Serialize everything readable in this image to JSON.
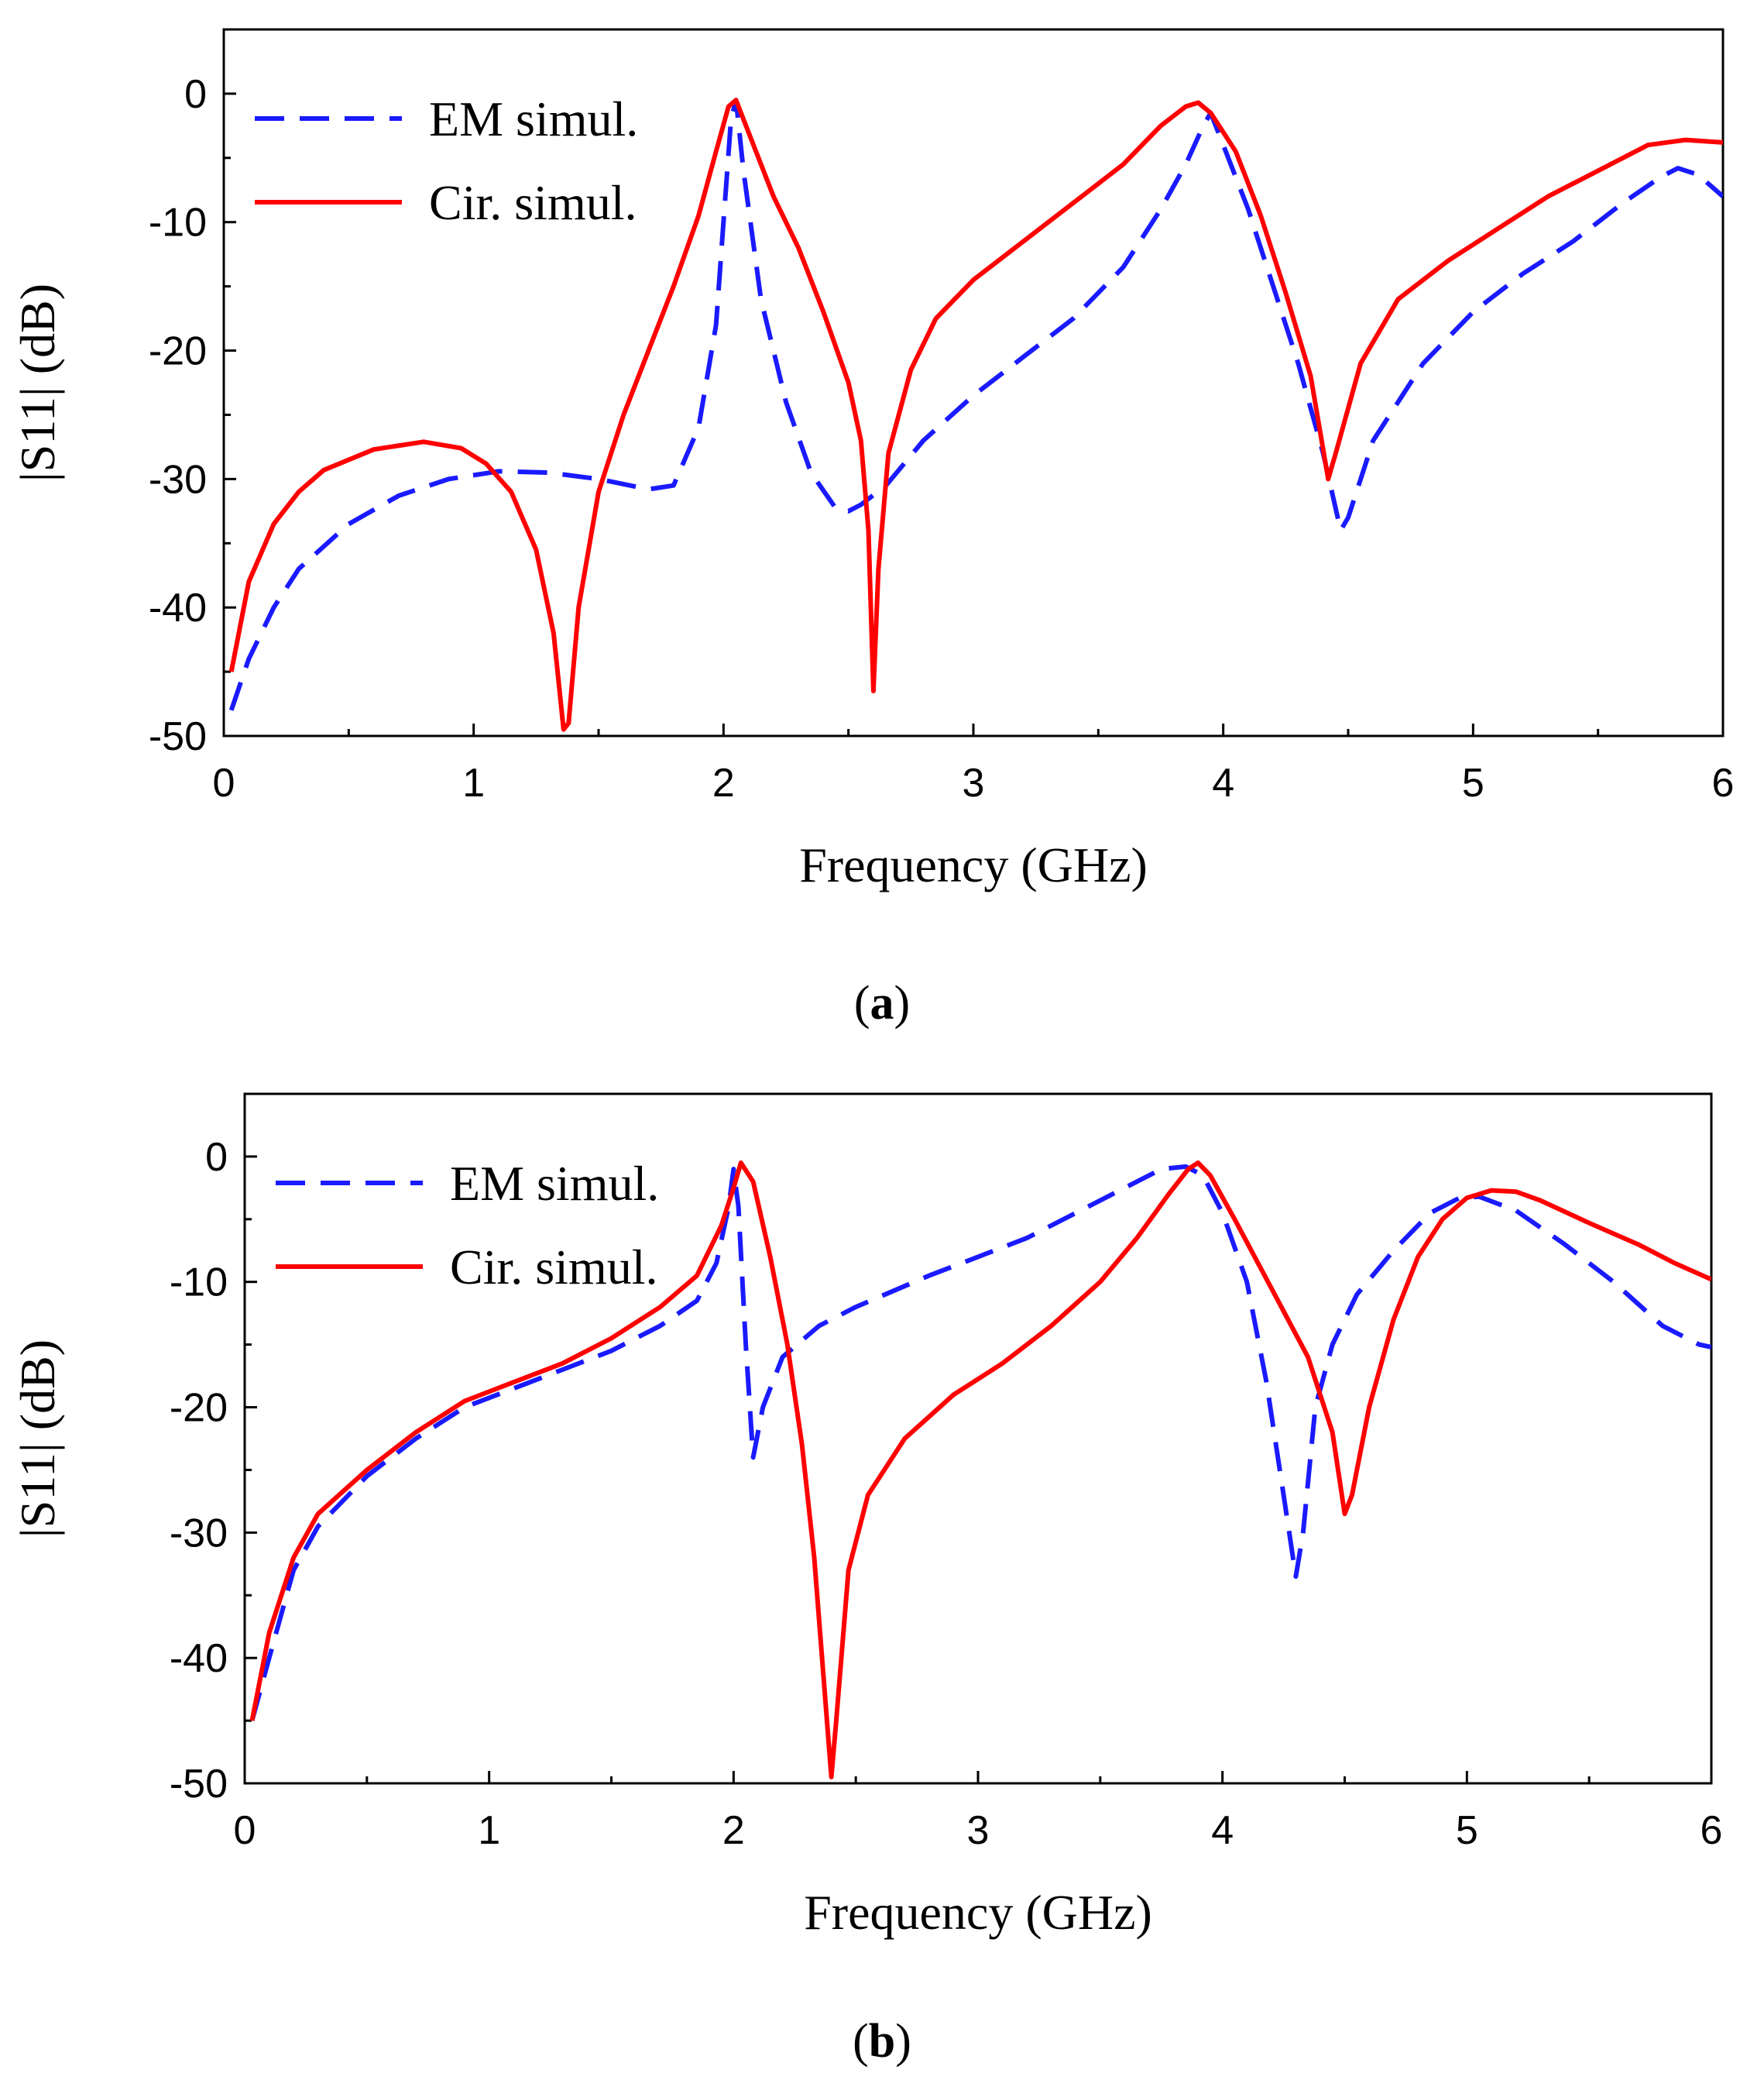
{
  "chart_data": [
    {
      "panel": "(a)",
      "panel_letter": "a",
      "type": "line",
      "xlabel": "Frequency  (GHz)",
      "ylabel": "|S11| (dB)",
      "xlim": [
        0,
        6
      ],
      "ylim": [
        -50,
        5
      ],
      "xticks": [
        "0",
        "1",
        "2",
        "3",
        "4",
        "5",
        "6"
      ],
      "yticks": [
        "0",
        "-10",
        "-20",
        "-30",
        "-40",
        "-50"
      ],
      "legend_position": "top-left",
      "series": [
        {
          "name": "EM simul.",
          "color": "#1a1aff",
          "style": "dashed",
          "points": [
            [
              0.03,
              -48
            ],
            [
              0.1,
              -44
            ],
            [
              0.2,
              -40
            ],
            [
              0.3,
              -37
            ],
            [
              0.5,
              -33.5
            ],
            [
              0.7,
              -31.3
            ],
            [
              0.9,
              -30
            ],
            [
              1.1,
              -29.4
            ],
            [
              1.3,
              -29.5
            ],
            [
              1.5,
              -30
            ],
            [
              1.7,
              -30.8
            ],
            [
              1.8,
              -30.5
            ],
            [
              1.9,
              -26
            ],
            [
              1.97,
              -18
            ],
            [
              2.0,
              -10
            ],
            [
              2.03,
              -2
            ],
            [
              2.05,
              -0.5
            ],
            [
              2.08,
              -6
            ],
            [
              2.15,
              -16
            ],
            [
              2.25,
              -24
            ],
            [
              2.35,
              -29.5
            ],
            [
              2.45,
              -32.3
            ],
            [
              2.5,
              -32.5
            ],
            [
              2.55,
              -32
            ],
            [
              2.65,
              -30.5
            ],
            [
              2.8,
              -27
            ],
            [
              3.0,
              -23.5
            ],
            [
              3.2,
              -20.5
            ],
            [
              3.4,
              -17.5
            ],
            [
              3.6,
              -13.5
            ],
            [
              3.75,
              -9
            ],
            [
              3.85,
              -5.5
            ],
            [
              3.92,
              -2.5
            ],
            [
              3.95,
              -1.5
            ],
            [
              4.0,
              -4
            ],
            [
              4.1,
              -9
            ],
            [
              4.2,
              -15
            ],
            [
              4.3,
              -21
            ],
            [
              4.4,
              -28
            ],
            [
              4.47,
              -34
            ],
            [
              4.5,
              -33
            ],
            [
              4.6,
              -27
            ],
            [
              4.8,
              -21
            ],
            [
              5.0,
              -17
            ],
            [
              5.2,
              -14
            ],
            [
              5.4,
              -11.5
            ],
            [
              5.6,
              -8.5
            ],
            [
              5.75,
              -6.5
            ],
            [
              5.82,
              -5.8
            ],
            [
              5.9,
              -6.3
            ],
            [
              6.0,
              -8
            ]
          ]
        },
        {
          "name": "Cir. simul.",
          "color": "#ff0000",
          "style": "solid",
          "points": [
            [
              0.03,
              -45
            ],
            [
              0.1,
              -38
            ],
            [
              0.2,
              -33.5
            ],
            [
              0.3,
              -31
            ],
            [
              0.4,
              -29.3
            ],
            [
              0.6,
              -27.7
            ],
            [
              0.8,
              -27.1
            ],
            [
              0.95,
              -27.6
            ],
            [
              1.05,
              -28.8
            ],
            [
              1.15,
              -31
            ],
            [
              1.25,
              -35.5
            ],
            [
              1.32,
              -42
            ],
            [
              1.36,
              -49.5
            ],
            [
              1.38,
              -49
            ],
            [
              1.42,
              -40
            ],
            [
              1.5,
              -31
            ],
            [
              1.6,
              -25
            ],
            [
              1.7,
              -20
            ],
            [
              1.8,
              -15
            ],
            [
              1.9,
              -9.5
            ],
            [
              1.97,
              -4.5
            ],
            [
              2.02,
              -1
            ],
            [
              2.05,
              -0.5
            ],
            [
              2.1,
              -3
            ],
            [
              2.2,
              -8
            ],
            [
              2.3,
              -12
            ],
            [
              2.4,
              -17
            ],
            [
              2.5,
              -22.5
            ],
            [
              2.55,
              -27
            ],
            [
              2.58,
              -34
            ],
            [
              2.6,
              -46.5
            ],
            [
              2.62,
              -37
            ],
            [
              2.66,
              -28
            ],
            [
              2.75,
              -21.5
            ],
            [
              2.85,
              -17.5
            ],
            [
              3.0,
              -14.5
            ],
            [
              3.2,
              -11.5
            ],
            [
              3.4,
              -8.5
            ],
            [
              3.6,
              -5.5
            ],
            [
              3.75,
              -2.5
            ],
            [
              3.85,
              -1
            ],
            [
              3.9,
              -0.7
            ],
            [
              3.95,
              -1.5
            ],
            [
              4.05,
              -4.5
            ],
            [
              4.15,
              -9.5
            ],
            [
              4.25,
              -15.5
            ],
            [
              4.35,
              -22
            ],
            [
              4.42,
              -30
            ],
            [
              4.45,
              -28
            ],
            [
              4.55,
              -21
            ],
            [
              4.7,
              -16
            ],
            [
              4.9,
              -13
            ],
            [
              5.1,
              -10.5
            ],
            [
              5.3,
              -8
            ],
            [
              5.5,
              -6
            ],
            [
              5.7,
              -4
            ],
            [
              5.85,
              -3.6
            ],
            [
              6.0,
              -3.8
            ]
          ]
        }
      ]
    },
    {
      "panel": "(b)",
      "panel_letter": "b",
      "type": "line",
      "xlabel": "Frequency  (GHz)",
      "ylabel": "|S11| (dB)",
      "xlim": [
        0,
        6
      ],
      "ylim": [
        -50,
        5
      ],
      "xticks": [
        "0",
        "1",
        "2",
        "3",
        "4",
        "5",
        "6"
      ],
      "yticks": [
        "0",
        "-10",
        "-20",
        "-30",
        "-40",
        "-50"
      ],
      "legend_position": "top-left",
      "series": [
        {
          "name": "EM simul.",
          "color": "#1a1aff",
          "style": "dashed",
          "points": [
            [
              0.03,
              -45
            ],
            [
              0.1,
              -40
            ],
            [
              0.2,
              -33
            ],
            [
              0.3,
              -29.5
            ],
            [
              0.5,
              -25.5
            ],
            [
              0.7,
              -22.5
            ],
            [
              0.9,
              -20
            ],
            [
              1.1,
              -18.5
            ],
            [
              1.3,
              -17
            ],
            [
              1.5,
              -15.5
            ],
            [
              1.7,
              -13.5
            ],
            [
              1.85,
              -11.5
            ],
            [
              1.93,
              -8.5
            ],
            [
              1.98,
              -4
            ],
            [
              2.0,
              -1
            ],
            [
              2.02,
              -4
            ],
            [
              2.05,
              -15
            ],
            [
              2.08,
              -24
            ],
            [
              2.12,
              -20
            ],
            [
              2.2,
              -16
            ],
            [
              2.35,
              -13.5
            ],
            [
              2.5,
              -12
            ],
            [
              2.8,
              -9.5
            ],
            [
              3.0,
              -8
            ],
            [
              3.2,
              -6.5
            ],
            [
              3.4,
              -4.5
            ],
            [
              3.6,
              -2.5
            ],
            [
              3.75,
              -1
            ],
            [
              3.85,
              -0.8
            ],
            [
              3.92,
              -1.5
            ],
            [
              4.0,
              -4.5
            ],
            [
              4.1,
              -10
            ],
            [
              4.18,
              -18
            ],
            [
              4.25,
              -27
            ],
            [
              4.3,
              -33.5
            ],
            [
              4.33,
              -30
            ],
            [
              4.38,
              -20
            ],
            [
              4.45,
              -15
            ],
            [
              4.55,
              -11
            ],
            [
              4.7,
              -7.5
            ],
            [
              4.85,
              -4.5
            ],
            [
              4.97,
              -3.3
            ],
            [
              5.05,
              -3.2
            ],
            [
              5.2,
              -4.3
            ],
            [
              5.4,
              -7
            ],
            [
              5.6,
              -10
            ],
            [
              5.8,
              -13.5
            ],
            [
              5.95,
              -15
            ],
            [
              6.0,
              -15.2
            ]
          ]
        },
        {
          "name": "Cir. simul.",
          "color": "#ff0000",
          "style": "solid",
          "points": [
            [
              0.03,
              -45
            ],
            [
              0.1,
              -38
            ],
            [
              0.2,
              -32
            ],
            [
              0.3,
              -28.5
            ],
            [
              0.5,
              -25
            ],
            [
              0.7,
              -22
            ],
            [
              0.9,
              -19.5
            ],
            [
              1.1,
              -18
            ],
            [
              1.3,
              -16.5
            ],
            [
              1.5,
              -14.5
            ],
            [
              1.7,
              -12
            ],
            [
              1.85,
              -9.5
            ],
            [
              1.95,
              -5.5
            ],
            [
              2.0,
              -2.5
            ],
            [
              2.03,
              -0.5
            ],
            [
              2.08,
              -2
            ],
            [
              2.15,
              -8
            ],
            [
              2.22,
              -15
            ],
            [
              2.28,
              -23
            ],
            [
              2.33,
              -32
            ],
            [
              2.37,
              -42
            ],
            [
              2.4,
              -49.5
            ],
            [
              2.42,
              -45
            ],
            [
              2.47,
              -33
            ],
            [
              2.55,
              -27
            ],
            [
              2.7,
              -22.5
            ],
            [
              2.9,
              -19
            ],
            [
              3.1,
              -16.5
            ],
            [
              3.3,
              -13.5
            ],
            [
              3.5,
              -10
            ],
            [
              3.65,
              -6.5
            ],
            [
              3.78,
              -3
            ],
            [
              3.86,
              -1
            ],
            [
              3.9,
              -0.5
            ],
            [
              3.95,
              -1.5
            ],
            [
              4.05,
              -5
            ],
            [
              4.2,
              -10.5
            ],
            [
              4.35,
              -16
            ],
            [
              4.45,
              -22
            ],
            [
              4.5,
              -28.5
            ],
            [
              4.53,
              -27
            ],
            [
              4.6,
              -20
            ],
            [
              4.7,
              -13
            ],
            [
              4.8,
              -8
            ],
            [
              4.9,
              -5
            ],
            [
              5.0,
              -3.3
            ],
            [
              5.1,
              -2.7
            ],
            [
              5.2,
              -2.8
            ],
            [
              5.3,
              -3.5
            ],
            [
              5.5,
              -5.3
            ],
            [
              5.7,
              -7
            ],
            [
              5.85,
              -8.5
            ],
            [
              6.0,
              -9.8
            ]
          ]
        }
      ]
    }
  ]
}
